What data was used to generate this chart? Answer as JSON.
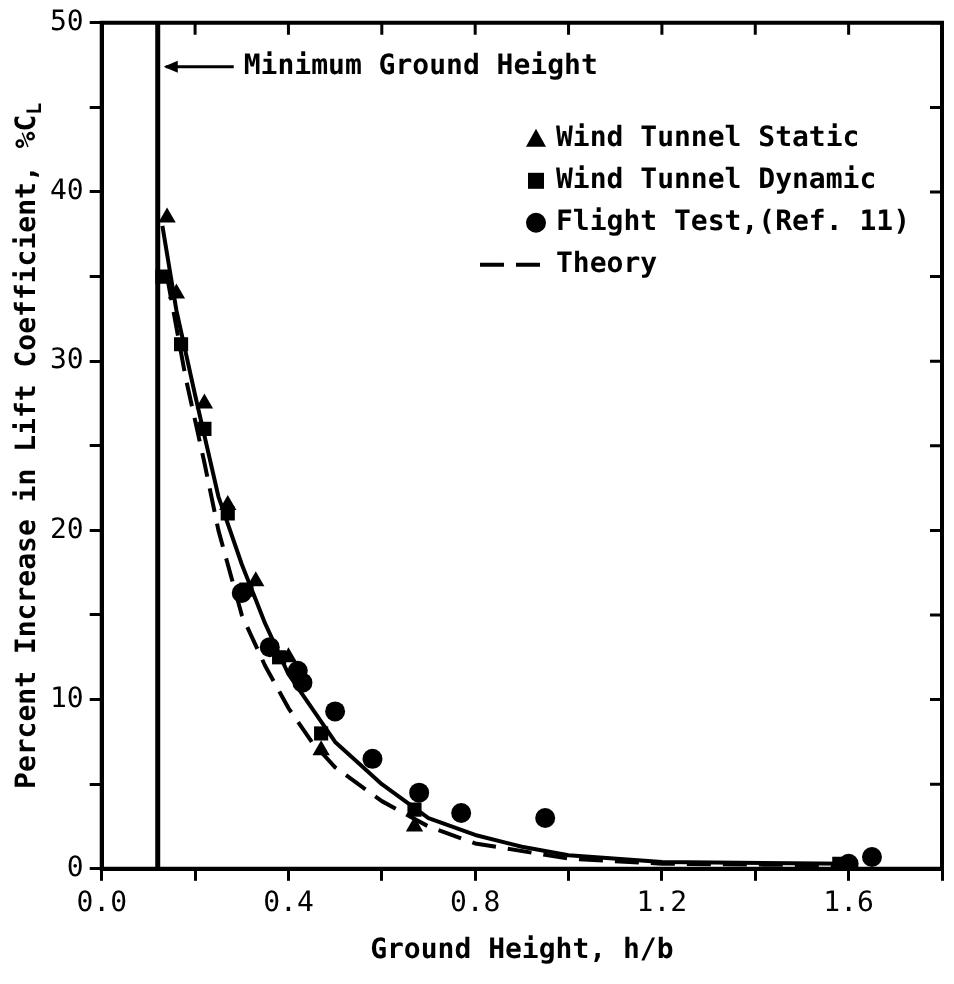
{
  "chart_data": {
    "type": "scatter",
    "xlabel": "Ground Height, h/b",
    "ylabel": "Percent Increase in Lift Coefficient, %C$_{L}$",
    "xlim": [
      0,
      1.8
    ],
    "xticks": [
      {
        "value": 0,
        "label": "0.0"
      },
      {
        "value": 0.2,
        "label": null
      },
      0.4,
      {
        "value": 0.6,
        "label": null
      },
      0.8,
      {
        "value": 1,
        "label": null
      },
      1.2,
      {
        "value": 1.4,
        "label": null
      },
      1.6,
      {
        "value": 1.8,
        "label": null
      }
    ],
    "ylim": [
      0,
      50
    ],
    "yticks": [
      0,
      {
        "value": 5,
        "label": null
      },
      10,
      {
        "value": 15,
        "label": null
      },
      20,
      {
        "value": 25,
        "label": null
      },
      30,
      {
        "value": 35,
        "label": null
      },
      40,
      {
        "value": 45,
        "label": null
      },
      50
    ],
    "grid": false,
    "legend": "top right",
    "ref_lines": [
      {
        "axis": "x",
        "value": 0.12,
        "label": "Minimum Ground Height",
        "color": "#000000"
      }
    ],
    "series": [
      {
        "name": "Wind Tunnel Static",
        "type": "scatter",
        "marker": "triangle",
        "color": "#000000",
        "x": [
          0.14,
          0.16,
          0.22,
          0.27,
          0.33,
          0.4,
          0.47,
          0.67
        ],
        "values": [
          38.5,
          34,
          27.5,
          21.5,
          17,
          12.5,
          7,
          2.5
        ]
      },
      {
        "name": "Wind Tunnel Dynamic",
        "type": "scatter",
        "marker": "square",
        "color": "#000000",
        "x": [
          0.13,
          0.17,
          0.22,
          0.27,
          0.31,
          0.38,
          0.47,
          0.67,
          1.58
        ],
        "values": [
          35,
          31,
          26,
          21,
          16.5,
          12.5,
          8,
          3.5,
          0.3
        ]
      },
      {
        "name": "Flight Test,(Ref. 11)",
        "type": "scatter",
        "marker": "circle",
        "color": "#000000",
        "x": [
          0.3,
          0.36,
          0.42,
          0.43,
          0.5,
          0.58,
          0.68,
          0.77,
          0.95,
          1.6,
          1.65
        ],
        "values": [
          16.3,
          13.1,
          11.7,
          11,
          9.3,
          6.5,
          4.5,
          3.3,
          3,
          0.3,
          0.7
        ]
      },
      {
        "type": "line",
        "marker": "none",
        "line_style": "solid",
        "color": "#000000",
        "x": [
          0.13,
          0.16,
          0.2,
          0.25,
          0.3,
          0.35,
          0.4,
          0.5,
          0.6,
          0.7,
          0.8,
          0.9,
          1,
          1.2,
          1.6
        ],
        "values": [
          38,
          33,
          28,
          22,
          18,
          14.5,
          11.5,
          7.5,
          5,
          3,
          2,
          1.3,
          0.8,
          0.4,
          0.3
        ]
      },
      {
        "name": "Theory",
        "type": "line",
        "marker": "none",
        "line_style": "dashed",
        "color": "#000000",
        "x": [
          0.14,
          0.18,
          0.22,
          0.25,
          0.3,
          0.35,
          0.4,
          0.45,
          0.5,
          0.6,
          0.7,
          0.8,
          1,
          1.2,
          1.6
        ],
        "values": [
          35,
          29,
          24,
          20,
          15,
          12,
          9.5,
          7.5,
          6,
          4,
          2.5,
          1.5,
          0.6,
          0.3,
          0.2
        ]
      }
    ]
  }
}
